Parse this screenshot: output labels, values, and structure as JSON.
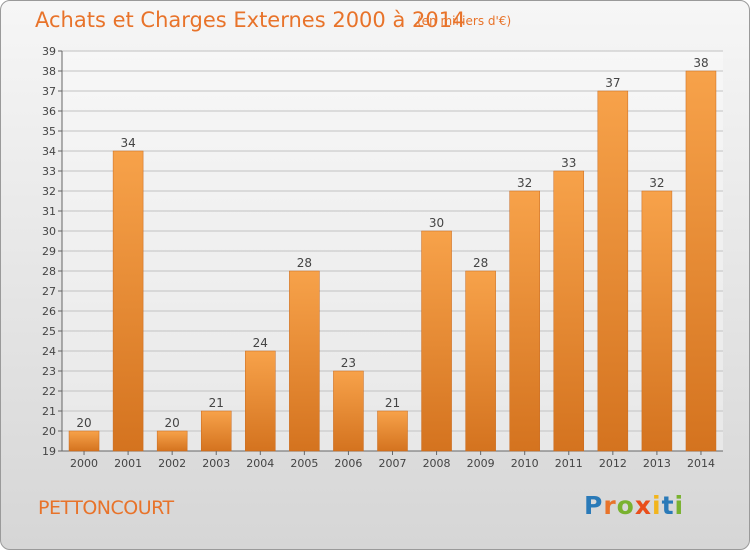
{
  "header": {
    "title": "Achats et Charges Externes 2000 à 2014",
    "subtitle": "(en milliers d'€)"
  },
  "footer": {
    "commune": "PETTONCOURT"
  },
  "brand": {
    "letters": [
      "P",
      "r",
      "o",
      "x",
      "i",
      "t",
      "i"
    ],
    "letter_colors": [
      "#2a7ab8",
      "#e8732a",
      "#79b22f",
      "#e94e1b",
      "#f2b51c",
      "#2a7ab8",
      "#79b22f"
    ]
  },
  "colors": {
    "bar_top": "#f7a24a",
    "bar_bottom": "#d4731f",
    "accent": "#e8732a",
    "grid": "#c2c2c2"
  },
  "chart_data": {
    "type": "bar",
    "categories": [
      "2000",
      "2001",
      "2002",
      "2003",
      "2004",
      "2005",
      "2006",
      "2007",
      "2008",
      "2009",
      "2010",
      "2011",
      "2012",
      "2013",
      "2014"
    ],
    "values": [
      20,
      34,
      20,
      21,
      24,
      28,
      23,
      21,
      30,
      28,
      32,
      33,
      37,
      32,
      38
    ],
    "title": "Achats et Charges Externes 2000 à 2014",
    "subtitle": "(en milliers d'€)",
    "ylim": [
      19,
      39
    ],
    "yticks": [
      19,
      20,
      21,
      22,
      23,
      24,
      25,
      26,
      27,
      28,
      29,
      30,
      31,
      32,
      33,
      34,
      35,
      36,
      37,
      38,
      39
    ],
    "grid": true,
    "data_labels": true
  }
}
